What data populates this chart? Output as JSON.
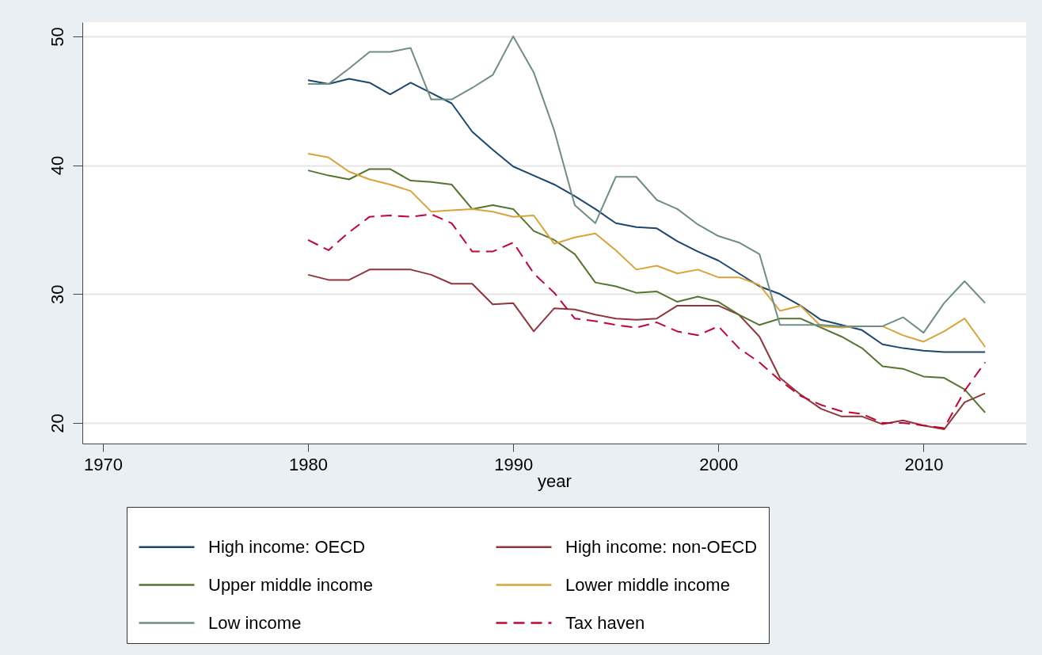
{
  "chart_data": {
    "type": "line",
    "xlabel": "year",
    "x": [
      1980,
      1981,
      1982,
      1983,
      1984,
      1985,
      1986,
      1987,
      1988,
      1989,
      1990,
      1991,
      1992,
      1993,
      1994,
      1995,
      1996,
      1997,
      1998,
      1999,
      2000,
      2001,
      2002,
      2003,
      2004,
      2005,
      2006,
      2007,
      2008,
      2009,
      2010,
      2011,
      2012,
      2013
    ],
    "xlim": [
      1969,
      2015
    ],
    "xticks": [
      1970,
      1980,
      1990,
      2000,
      2010
    ],
    "ylim": [
      18.4,
      51.1
    ],
    "yticks": [
      20,
      30,
      40,
      50
    ],
    "grid": "y",
    "legend": "bottom",
    "line_style": "solid",
    "series": [
      {
        "name": "High income: OECD",
        "color": "#1a476f",
        "values": [
          46.6,
          46.3,
          46.7,
          46.4,
          45.5,
          46.4,
          45.6,
          44.8,
          42.6,
          41.2,
          39.9,
          39.2,
          38.5,
          37.6,
          36.6,
          35.5,
          35.2,
          35.1,
          34.1,
          33.3,
          32.6,
          31.6,
          30.6,
          30.0,
          29.1,
          28.0,
          27.6,
          27.2,
          26.1,
          25.8,
          25.6,
          25.5,
          25.5,
          25.5
        ]
      },
      {
        "name": "High income: non-OECD",
        "color": "#90353b",
        "values": [
          31.5,
          31.1,
          31.1,
          31.9,
          31.9,
          31.9,
          31.5,
          30.8,
          30.8,
          29.2,
          29.3,
          27.1,
          28.9,
          28.8,
          28.4,
          28.1,
          28.0,
          28.1,
          29.1,
          29.1,
          29.1,
          28.4,
          26.7,
          23.5,
          22.2,
          21.1,
          20.5,
          20.5,
          19.9,
          20.2,
          19.8,
          19.5,
          21.6,
          22.3
        ]
      },
      {
        "name": "Upper middle income",
        "color": "#55752f",
        "values": [
          39.6,
          39.2,
          38.9,
          39.7,
          39.7,
          38.8,
          38.7,
          38.5,
          36.6,
          36.9,
          36.6,
          34.9,
          34.2,
          33.1,
          30.9,
          30.6,
          30.1,
          30.2,
          29.4,
          29.8,
          29.4,
          28.4,
          27.6,
          28.1,
          28.1,
          27.4,
          26.7,
          25.8,
          24.4,
          24.2,
          23.6,
          23.5,
          22.6,
          20.8
        ]
      },
      {
        "name": "Lower middle income",
        "color": "#d9a33a",
        "values": [
          40.9,
          40.6,
          39.5,
          38.9,
          38.5,
          38.0,
          36.4,
          36.5,
          36.6,
          36.4,
          36.0,
          36.1,
          33.9,
          34.4,
          34.7,
          33.4,
          31.9,
          32.2,
          31.6,
          31.9,
          31.3,
          31.3,
          30.7,
          28.7,
          29.1,
          27.5,
          27.4,
          27.5,
          27.5,
          26.8,
          26.3,
          27.1,
          28.1,
          25.9
        ]
      },
      {
        "name": "Low income",
        "color": "#6e8e84",
        "values": [
          46.3,
          46.3,
          47.5,
          48.8,
          48.8,
          49.1,
          45.1,
          45.1,
          46.0,
          47.0,
          50.0,
          47.2,
          42.7,
          36.9,
          35.5,
          39.1,
          39.1,
          37.3,
          36.6,
          35.4,
          34.5,
          34.0,
          33.1,
          27.6,
          27.6,
          27.6,
          27.5,
          27.5,
          27.5,
          28.2,
          27.0,
          29.3,
          31.0,
          29.3
        ]
      },
      {
        "name": "Tax haven",
        "color": "#c10534",
        "line_style": "dashed",
        "values": [
          34.2,
          33.4,
          34.8,
          36.0,
          36.1,
          36.0,
          36.2,
          35.5,
          33.3,
          33.3,
          34.0,
          31.6,
          30.1,
          28.1,
          27.9,
          27.6,
          27.4,
          27.8,
          27.1,
          26.8,
          27.5,
          25.8,
          24.7,
          23.3,
          22.1,
          21.4,
          20.9,
          20.7,
          20.0,
          20.0,
          19.8,
          19.6,
          22.5,
          24.7
        ]
      }
    ]
  }
}
